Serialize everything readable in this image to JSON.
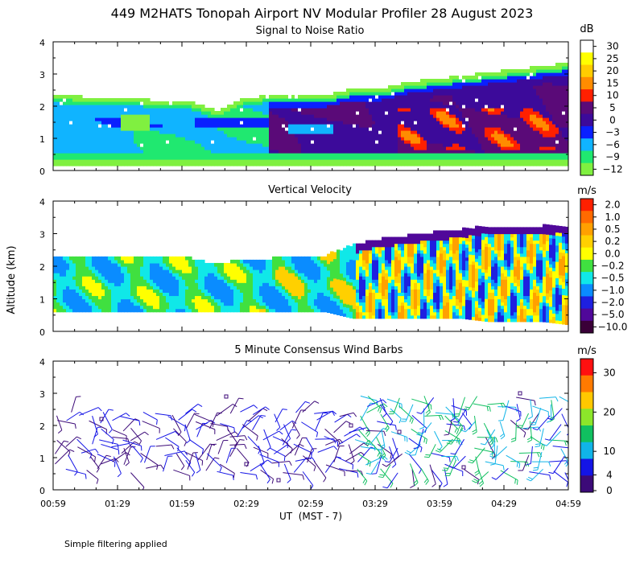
{
  "figure": {
    "title": "449 M2HATS Tonopah Airport NV Modular Profiler 28 August 2023",
    "ylabel": "Altitude (km)",
    "xlabel": "UT  (MST - 7)",
    "footnote": "Simple filtering applied"
  },
  "chart_data": [
    {
      "type": "heatmap",
      "title": "Signal to Noise Ratio",
      "unit": "dB",
      "xlim": [
        0,
        240
      ],
      "ylim": [
        0,
        4
      ],
      "y_ticks": [
        "0",
        "1",
        "2",
        "3",
        "4"
      ],
      "x_ticks": [
        "00:59",
        "01:29",
        "01:59",
        "02:29",
        "02:59",
        "03:29",
        "03:59",
        "04:29",
        "04:59"
      ],
      "x_tick_minutes": [
        0,
        30,
        60,
        90,
        120,
        150,
        180,
        210,
        240
      ],
      "colorbar_labels": [
        "30",
        "25",
        "20",
        "15",
        "10",
        "5",
        "0",
        "−3",
        "−6",
        "−9",
        "−12"
      ],
      "colors": [
        "#ffffff",
        "#ffff00",
        "#ffcc00",
        "#ff8c00",
        "#ff2000",
        "#5a0a78",
        "#3c0a9a",
        "#0a20ff",
        "#10b4ff",
        "#20e870",
        "#80f040"
      ],
      "data_top_km": [
        2.3,
        2.25,
        2.2,
        2.2,
        2.1,
        2.1,
        1.8,
        2.2,
        2.3,
        2.3,
        2.3,
        2.5,
        2.5,
        2.7,
        2.8,
        2.9,
        3.0,
        3.1,
        3.2,
        3.3
      ],
      "data_bottom_km": 0.15
    },
    {
      "type": "heatmap",
      "title": "Vertical Velocity",
      "unit": "m/s",
      "xlim": [
        0,
        240
      ],
      "ylim": [
        0,
        4
      ],
      "y_ticks": [
        "0",
        "1",
        "2",
        "3",
        "4"
      ],
      "x_tick_minutes": [
        0,
        30,
        60,
        90,
        120,
        150,
        180,
        210,
        240
      ],
      "colorbar_labels": [
        "2.0",
        "1.0",
        "0.5",
        "0.2",
        "0.0",
        "−0.2",
        "−0.5",
        "−1.0",
        "−2.0",
        "−5.0",
        "−10.0"
      ],
      "colors": [
        "#ff2000",
        "#ff6a00",
        "#ffa000",
        "#ffd000",
        "#ffff00",
        "#40e040",
        "#10e8e8",
        "#0a8cff",
        "#1e20e0",
        "#50089a",
        "#3a0038"
      ],
      "data_top_km": [
        2.3,
        2.3,
        2.3,
        2.3,
        2.25,
        2.2,
        2.0,
        2.2,
        2.2,
        2.3,
        2.3,
        2.6,
        2.8,
        2.9,
        3.0,
        3.1,
        3.2,
        3.2,
        3.2,
        3.2
      ],
      "data_bottom_km": [
        0.6,
        0.6,
        0.6,
        0.6,
        0.6,
        0.6,
        0.6,
        0.6,
        0.6,
        0.6,
        0.6,
        0.4,
        0.4,
        0.4,
        0.4,
        0.4,
        0.3,
        0.3,
        0.3,
        0.2
      ]
    },
    {
      "type": "scatter",
      "title": "5 Minute Consensus Wind Barbs",
      "unit": "m/s",
      "xlim": [
        0,
        240
      ],
      "ylim": [
        0,
        4
      ],
      "y_ticks": [
        "0",
        "1",
        "2",
        "3",
        "4"
      ],
      "x_tick_minutes": [
        0,
        30,
        60,
        90,
        120,
        150,
        180,
        210,
        240
      ],
      "colorbar_labels": [
        "30",
        "20",
        "10",
        "4",
        "0"
      ],
      "colorbar_values": [
        30,
        20,
        10,
        4,
        0
      ],
      "colors": [
        "#ff1010",
        "#ff7a00",
        "#ffc800",
        "#8ce62a",
        "#10c060",
        "#10b4e8",
        "#1414e6",
        "#3c0a78"
      ],
      "barb_interval_min": 5,
      "altitude_range_km": [
        0.6,
        3.1
      ]
    }
  ]
}
